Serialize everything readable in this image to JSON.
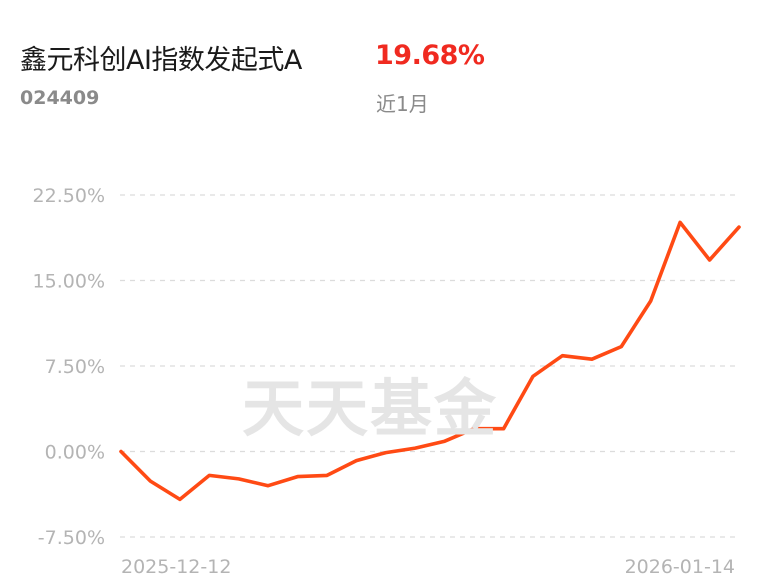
{
  "header": {
    "fund_name": "鑫元科创AI指数发起式A",
    "fund_code": "024409",
    "return_value": "19.68%",
    "return_period": "近1月"
  },
  "watermark": "天天基金",
  "colors": {
    "line": "#ff4a14",
    "return_red": "#f02a20",
    "grid": "#dcdcdc",
    "axis_text": "#b4b4b4"
  },
  "chart_data": {
    "type": "line",
    "title": "",
    "xlabel": "",
    "ylabel": "",
    "ylim": [
      -7.5,
      22.5
    ],
    "y_ticks": [
      22.5,
      15.0,
      7.5,
      0.0,
      -7.5
    ],
    "y_tick_labels": [
      "22.50%",
      "15.00%",
      "7.50%",
      "0.00%",
      "-7.50%"
    ],
    "x_tick_labels": [
      "2025-12-12",
      "2026-01-14"
    ],
    "grid": true,
    "series": [
      {
        "values": [
          0.0,
          -2.6,
          -4.2,
          -2.1,
          -2.4,
          -3.0,
          -2.2,
          -2.1,
          -0.8,
          -0.1,
          0.3,
          0.9,
          2.0,
          2.0,
          6.6,
          8.4,
          8.1,
          9.2,
          13.2,
          20.1,
          16.8,
          19.68
        ]
      }
    ]
  }
}
